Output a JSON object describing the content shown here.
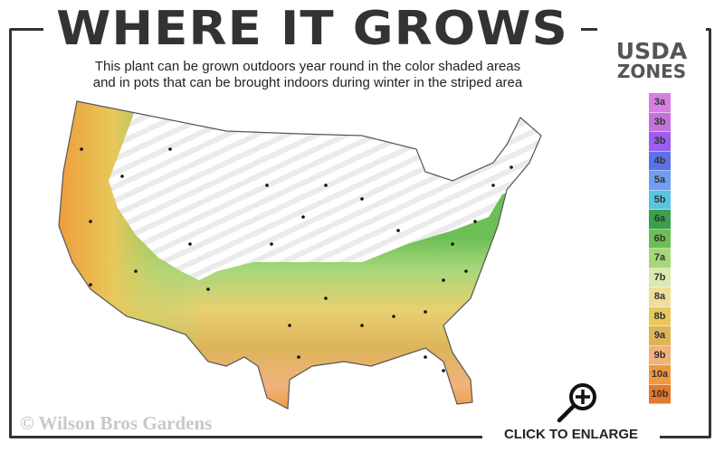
{
  "header": {
    "title": "WHERE IT GROWS",
    "subtitle_line1": "This plant can be grown outdoors year round in the color shaded areas",
    "subtitle_line2": "and in pots that can be brought indoors during winter in the striped area"
  },
  "legend": {
    "title_line1": "USDA",
    "title_line2": "ZONES",
    "zones": [
      {
        "label": "3a",
        "color": "#d67fe0"
      },
      {
        "label": "3b",
        "color": "#c173de"
      },
      {
        "label": "3b",
        "color": "#9b5ef0"
      },
      {
        "label": "4b",
        "color": "#5a72e6"
      },
      {
        "label": "5a",
        "color": "#6f9ef2"
      },
      {
        "label": "5b",
        "color": "#5ac3e0"
      },
      {
        "label": "6a",
        "color": "#3aa04a"
      },
      {
        "label": "6b",
        "color": "#6cbf55"
      },
      {
        "label": "7a",
        "color": "#a6d77a"
      },
      {
        "label": "7b",
        "color": "#dbeab0"
      },
      {
        "label": "8a",
        "color": "#f0dd98"
      },
      {
        "label": "8b",
        "color": "#e8c85a"
      },
      {
        "label": "9a",
        "color": "#ddb45a"
      },
      {
        "label": "9b",
        "color": "#f1b27c"
      },
      {
        "label": "10a",
        "color": "#ee9a3c"
      },
      {
        "label": "10b",
        "color": "#e4782e"
      }
    ]
  },
  "footer": {
    "copyright": "© Wilson Bros Gardens",
    "enlarge_label": "CLICK TO ENLARGE"
  },
  "map": {
    "striped_region": "winter pots (north)",
    "colors": {
      "frame": "#333333"
    }
  }
}
